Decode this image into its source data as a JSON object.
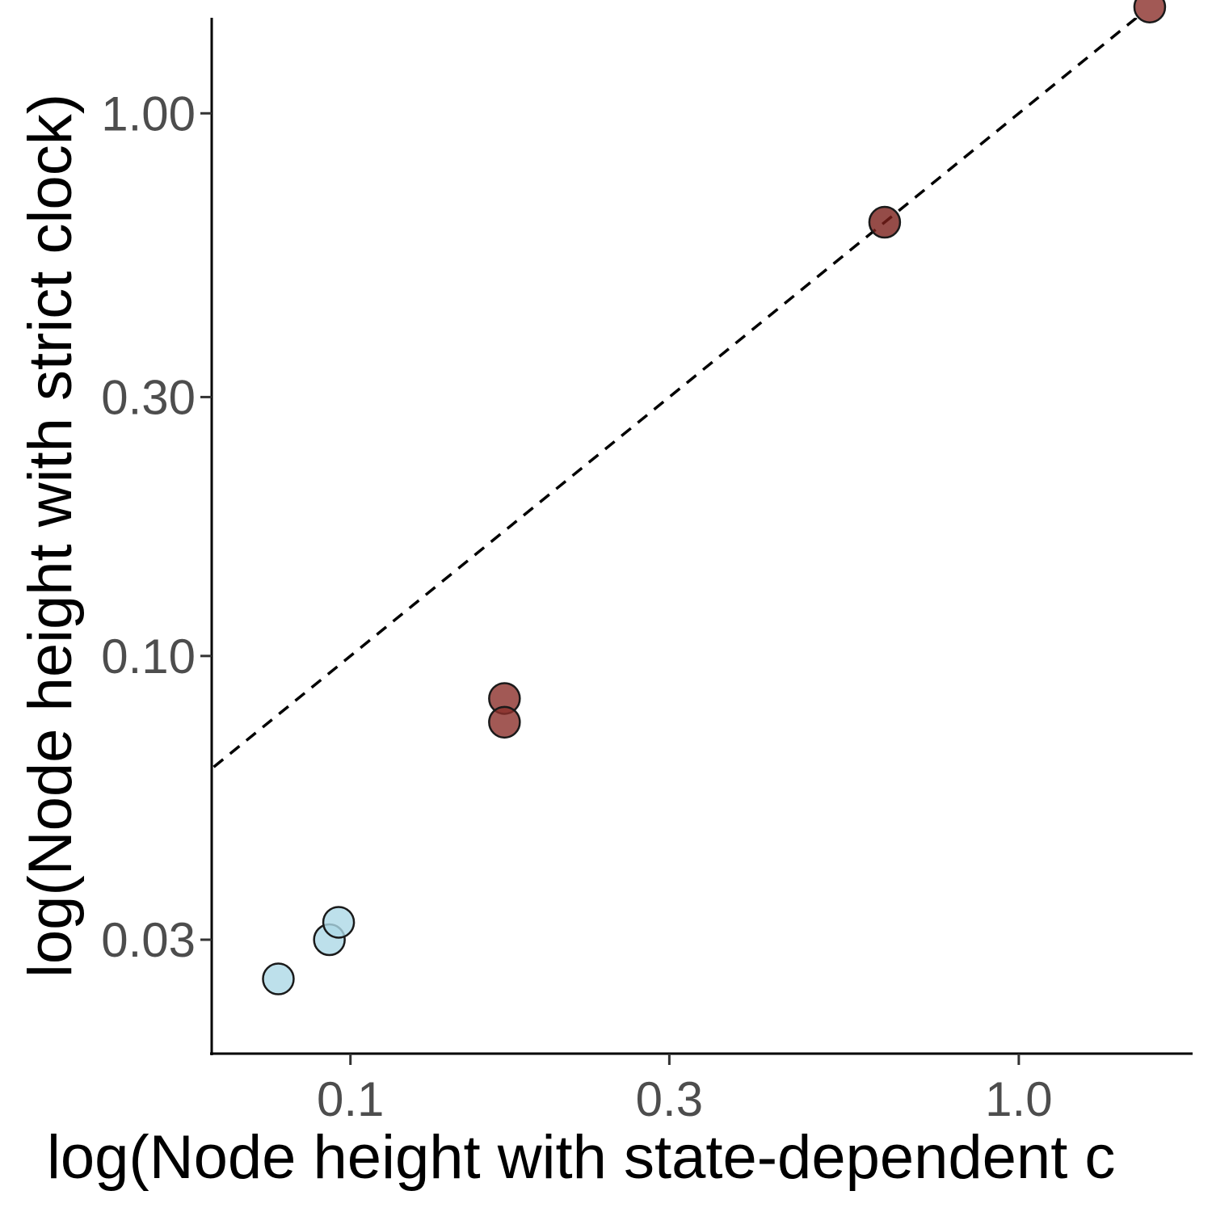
{
  "chart_data": {
    "type": "scatter",
    "xlabel": "log(Node height with state-dependent c",
    "ylabel": "log(Node height with strict clock)",
    "x_scale": "log10",
    "y_scale": "log10",
    "xlim": [
      0.062,
      1.82
    ],
    "ylim": [
      0.0185,
      1.5
    ],
    "x_ticks": [
      {
        "value": 0.1,
        "label": "0.1"
      },
      {
        "value": 0.3,
        "label": "0.3"
      },
      {
        "value": 1.0,
        "label": "1.0"
      }
    ],
    "y_ticks": [
      {
        "value": 0.03,
        "label": "0.03"
      },
      {
        "value": 0.1,
        "label": "0.10"
      },
      {
        "value": 0.3,
        "label": "0.30"
      },
      {
        "value": 1.0,
        "label": "1.00"
      }
    ],
    "reference_line": {
      "type": "identity",
      "style": "dashed",
      "color": "#000000"
    },
    "grid": false,
    "legend": "none",
    "points": [
      {
        "x": 0.078,
        "y": 0.0254,
        "color": "#add8e6"
      },
      {
        "x": 0.093,
        "y": 0.03,
        "color": "#add8e6"
      },
      {
        "x": 0.096,
        "y": 0.0323,
        "color": "#add8e6"
      },
      {
        "x": 0.17,
        "y": 0.0835,
        "color": "#8b2f2a"
      },
      {
        "x": 0.17,
        "y": 0.0755,
        "color": "#8b2f2a"
      },
      {
        "x": 0.63,
        "y": 0.63,
        "color": "#7a1f1a"
      },
      {
        "x": 1.57,
        "y": 1.57,
        "color": "#8b2f2a"
      }
    ]
  }
}
